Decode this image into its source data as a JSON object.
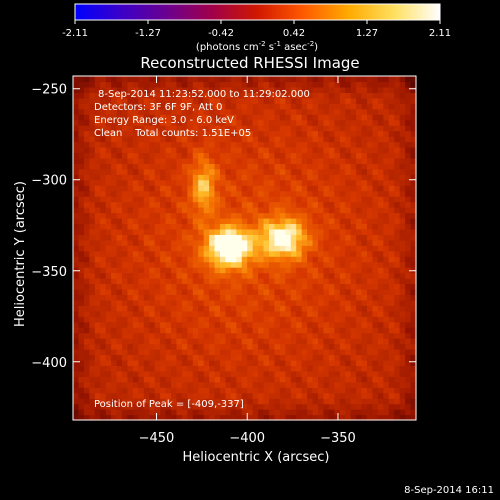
{
  "chart_data": {
    "type": "heatmap",
    "title": "Reconstructed RHESSI Image",
    "colorbar": {
      "ticks": [
        "-2.11",
        "-1.27",
        "-0.42",
        "0.42",
        "1.27",
        "2.11"
      ],
      "units_prefix": "(photons cm",
      "units_exp1": "-2",
      "units_mid": " s",
      "units_exp2": "-1",
      "units_mid2": " asec",
      "units_exp3": "-2",
      "units_suffix": ")",
      "colors": [
        "#0000ff",
        "#3a00c8",
        "#6a0090",
        "#a0004a",
        "#d01800",
        "#ff5a00",
        "#ffaa00",
        "#ffe060",
        "#ffffff"
      ]
    },
    "xlabel": "Heliocentric X (arcsec)",
    "ylabel": "Heliocentric Y (arcsec)",
    "xlim": [
      -496,
      -307
    ],
    "ylim": [
      -432,
      -243
    ],
    "xticks": [
      {
        "value": -450,
        "label": "−450"
      },
      {
        "value": -400,
        "label": "−400"
      },
      {
        "value": -350,
        "label": "−350"
      }
    ],
    "yticks": [
      {
        "value": -250,
        "label": "−250"
      },
      {
        "value": -300,
        "label": "−300"
      },
      {
        "value": -350,
        "label": "−350"
      },
      {
        "value": -400,
        "label": "−400"
      }
    ],
    "sources": [
      {
        "x": -410,
        "y": -337,
        "peak": 1.0
      },
      {
        "x": -380,
        "y": -332,
        "peak": 0.82
      },
      {
        "x": -424,
        "y": -303,
        "peak": 0.55
      }
    ],
    "annotations": [
      "8-Sep-2014 11:23:52.000 to 11:29:02.000",
      "Detectors: 3F 6F 9F, Att 0",
      "Energy Range: 3.0 - 6.0 keV",
      "Clean    Total counts: 1.51E+05"
    ],
    "peak_label": "Position of Peak = [-409,-337]",
    "timestamp": "8-Sep-2014 16:11"
  }
}
